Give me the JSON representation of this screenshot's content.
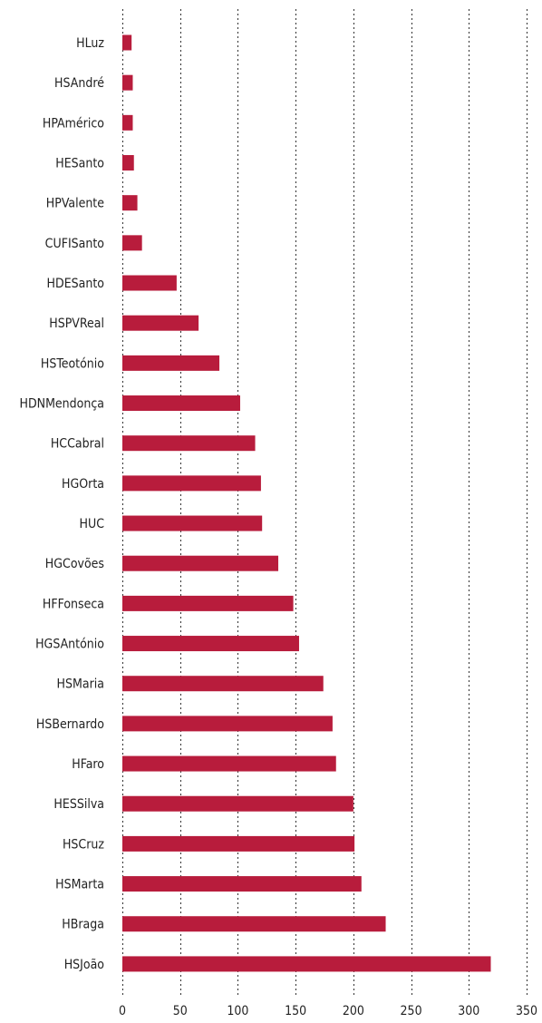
{
  "chart_data": {
    "type": "bar",
    "orientation": "horizontal",
    "title": "",
    "xlabel": "",
    "ylabel": "",
    "xlim": [
      0,
      350
    ],
    "xticks": [
      0,
      50,
      100,
      150,
      200,
      250,
      300,
      350
    ],
    "xtick_labels": [
      "0",
      "50",
      "100",
      "150",
      "200",
      "250",
      "300",
      "350"
    ],
    "grid": "vertical-dotted",
    "legend": "none",
    "bar_color": "#b81c3c",
    "categories": [
      "HLuz",
      "HSAndré",
      "HPAmérico",
      "HESanto",
      "HPValente",
      "CUFISanto",
      "HDESanto",
      "HSPVReal",
      "HSTeotónio",
      "HDNMendonça",
      "HCCabral",
      "HGOrta",
      "HUC",
      "HGCovões",
      "HFFonseca",
      "HGSAntónio",
      "HSMaria",
      "HSBernardo",
      "HFaro",
      "HESSilva",
      "HSCruz",
      "HSMarta",
      "HBraga",
      "HSJoão"
    ],
    "values": [
      8,
      9,
      9,
      10,
      13,
      17,
      47,
      66,
      84,
      102,
      115,
      120,
      121,
      135,
      148,
      153,
      174,
      182,
      185,
      200,
      201,
      207,
      228,
      319
    ]
  }
}
